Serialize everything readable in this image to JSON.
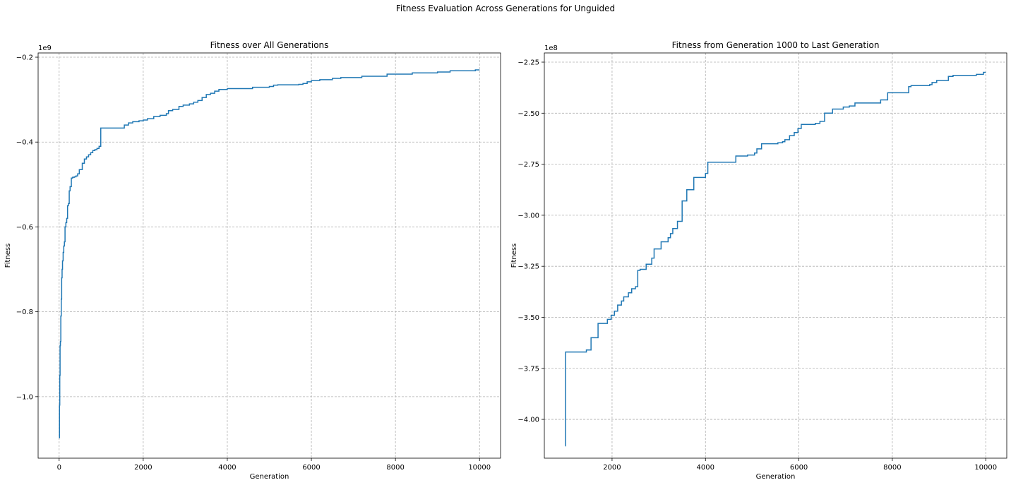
{
  "figure": {
    "suptitle": "Fitness Evaluation Across Generations for Unguided"
  },
  "colors": {
    "line": "#1f77b4",
    "grid": "#b0b0b0",
    "axes": "#000000",
    "background": "#ffffff"
  },
  "chart_data": [
    {
      "type": "line",
      "title": "Fitness over All Generations",
      "xlabel": "Generation",
      "ylabel": "Fitness",
      "offset_text": "1e9",
      "y_scale": 1000000000.0,
      "xlim": [
        -500,
        10500
      ],
      "ylim": [
        -1145000000.0,
        -190000000.0
      ],
      "xticks": [
        0,
        2000,
        4000,
        6000,
        8000,
        10000
      ],
      "yticks": [
        -1000000000.0,
        -800000000.0,
        -600000000.0,
        -400000000.0,
        -200000000.0
      ],
      "ytick_labels": [
        "−1.0",
        "−0.8",
        "−0.6",
        "−0.4",
        "−0.2"
      ],
      "grid": true,
      "series": [
        {
          "drawstyle": "steps-post",
          "x": [
            0,
            8,
            15,
            22,
            30,
            40,
            50,
            60,
            70,
            80,
            95,
            110,
            125,
            140,
            160,
            180,
            200,
            220,
            240,
            260,
            290,
            320,
            360,
            400,
            440,
            480,
            550,
            600,
            650,
            700,
            750,
            800,
            850,
            900,
            950,
            990,
            1000,
            1550,
            1650,
            1750,
            1900,
            2000,
            2100,
            2250,
            2400,
            2550,
            2600,
            2700,
            2850,
            2950,
            3100,
            3200,
            3300,
            3400,
            3500,
            3600,
            3700,
            3800,
            4000,
            4600,
            5000,
            5100,
            5200,
            5700,
            5800,
            5900,
            6000,
            6200,
            6500,
            6700,
            7200,
            7800,
            8400,
            9000,
            9300,
            9900,
            10000
          ],
          "y": [
            -1097000000.0,
            -1020000000.0,
            -950000000.0,
            -880000000.0,
            -870000000.0,
            -810000000.0,
            -770000000.0,
            -720000000.0,
            -700000000.0,
            -680000000.0,
            -660000000.0,
            -645000000.0,
            -635000000.0,
            -600000000.0,
            -590000000.0,
            -580000000.0,
            -550000000.0,
            -545000000.0,
            -515000000.0,
            -505000000.0,
            -485000000.0,
            -483000000.0,
            -482000000.0,
            -480000000.0,
            -475000000.0,
            -465000000.0,
            -450000000.0,
            -440000000.0,
            -435000000.0,
            -430000000.0,
            -425000000.0,
            -420000000.0,
            -418000000.0,
            -415000000.0,
            -410000000.0,
            -367000000.0,
            -367000000.0,
            -360000000.0,
            -355000000.0,
            -352000000.0,
            -350000000.0,
            -348000000.0,
            -345000000.0,
            -340000000.0,
            -337000000.0,
            -333000000.0,
            -326000000.0,
            -323000000.0,
            -316000000.0,
            -313000000.0,
            -310000000.0,
            -306000000.0,
            -302000000.0,
            -295000000.0,
            -288000000.0,
            -285000000.0,
            -280000000.0,
            -276000000.0,
            -274000000.0,
            -271000000.0,
            -269000000.0,
            -266000000.0,
            -265000000.0,
            -264000000.0,
            -262000000.0,
            -258000000.0,
            -255000000.0,
            -253000000.0,
            -250000000.0,
            -248000000.0,
            -245000000.0,
            -240000000.0,
            -237000000.0,
            -235000000.0,
            -232000000.0,
            -230000000.0,
            -230000000.0
          ]
        }
      ]
    },
    {
      "type": "line",
      "title": "Fitness from Generation 1000 to Last Generation",
      "xlabel": "Generation",
      "ylabel": "Fitness",
      "offset_text": "1e8",
      "y_scale": 100000000.0,
      "xlim": [
        550,
        10450
      ],
      "ylim": [
        -419000000.0,
        -220500000.0
      ],
      "xticks": [
        2000,
        4000,
        6000,
        8000,
        10000
      ],
      "yticks": [
        -400000000.0,
        -375000000.0,
        -350000000.0,
        -325000000.0,
        -300000000.0,
        -275000000.0,
        -250000000.0,
        -225000000.0
      ],
      "ytick_labels": [
        "−4.00",
        "−3.75",
        "−3.50",
        "−3.25",
        "−3.00",
        "−2.75",
        "−2.50",
        "−2.25"
      ],
      "grid": true,
      "series": [
        {
          "drawstyle": "steps-post",
          "x": [
            1000,
            1005,
            1450,
            1550,
            1700,
            1900,
            1980,
            2050,
            2120,
            2200,
            2250,
            2350,
            2420,
            2500,
            2550,
            2600,
            2730,
            2850,
            2900,
            3050,
            3200,
            3250,
            3300,
            3400,
            3500,
            3600,
            3750,
            4000,
            4050,
            4650,
            4900,
            5050,
            5100,
            5200,
            5550,
            5650,
            5700,
            5800,
            5900,
            5980,
            6050,
            6350,
            6450,
            6550,
            6720,
            6950,
            7080,
            7200,
            7750,
            7900,
            8350,
            8400,
            8800,
            8850,
            8950,
            9200,
            9300,
            9800,
            9950,
            10000
          ],
          "y": [
            -413000000.0,
            -367000000.0,
            -366000000.0,
            -360000000.0,
            -353000000.0,
            -351000000.0,
            -349000000.0,
            -347000000.0,
            -344000000.0,
            -342000000.0,
            -340000000.0,
            -338000000.0,
            -336000000.0,
            -335000000.0,
            -327000000.0,
            -326500000.0,
            -324000000.0,
            -321000000.0,
            -316500000.0,
            -313000000.0,
            -311000000.0,
            -309000000.0,
            -306500000.0,
            -303000000.0,
            -293000000.0,
            -287500000.0,
            -281500000.0,
            -279500000.0,
            -274000000.0,
            -271000000.0,
            -270500000.0,
            -269500000.0,
            -267500000.0,
            -265000000.0,
            -264500000.0,
            -264000000.0,
            -263000000.0,
            -261000000.0,
            -259500000.0,
            -257500000.0,
            -255500000.0,
            -255000000.0,
            -254000000.0,
            -250000000.0,
            -248000000.0,
            -247000000.0,
            -246500000.0,
            -245000000.0,
            -243500000.0,
            -240000000.0,
            -237000000.0,
            -236500000.0,
            -236000000.0,
            -235000000.0,
            -234000000.0,
            -232000000.0,
            -231500000.0,
            -231000000.0,
            -230000000.0,
            -230000000.0
          ]
        }
      ]
    }
  ]
}
